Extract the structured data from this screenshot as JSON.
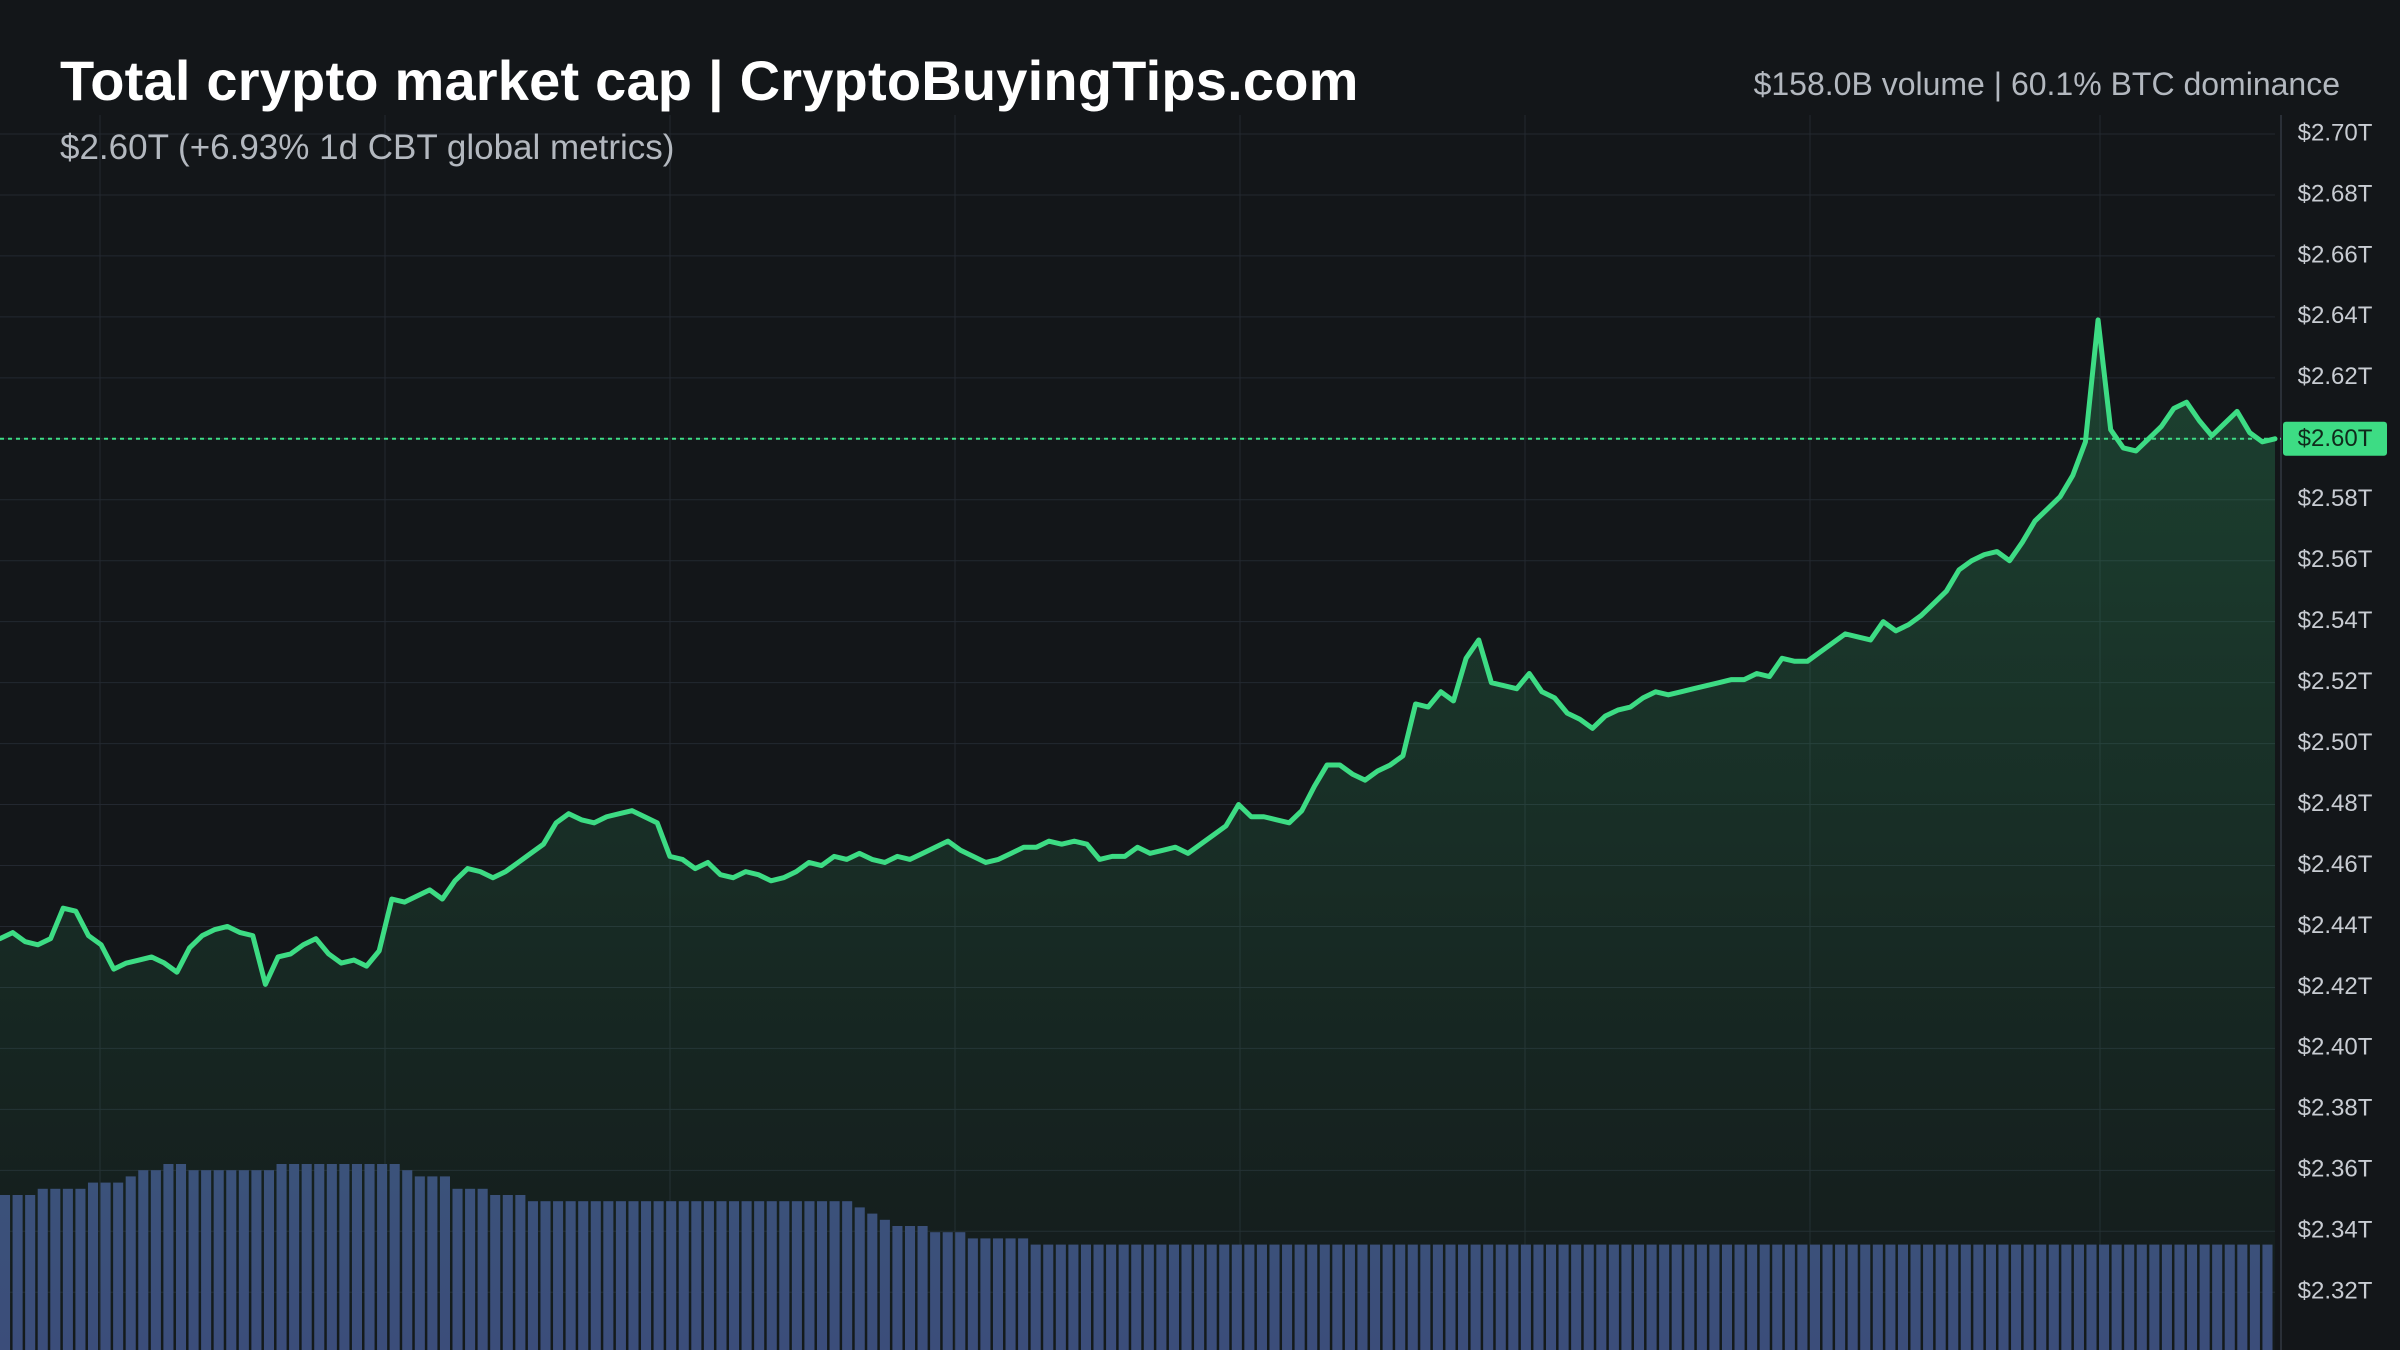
{
  "header": {
    "title": "Total crypto market cap | CryptoBuyingTips.com",
    "subtitle": "$2.60T (+6.93% 1d CBT global metrics)",
    "stats": "$158.0B volume | 60.1% BTC dominance"
  },
  "colors": {
    "background": "#131619",
    "line": "#3ddc84",
    "volume": "#3b4a7a",
    "grid": "#232830",
    "price_tag": "#3ddc84"
  },
  "chart_data": {
    "type": "area",
    "title": "Total crypto market cap | CryptoBuyingTips.com",
    "y_unit": "$T",
    "ylim": [
      2.31,
      2.71
    ],
    "y_ticks": [
      2.7,
      2.68,
      2.66,
      2.64,
      2.62,
      2.6,
      2.58,
      2.56,
      2.54,
      2.52,
      2.5,
      2.48,
      2.46,
      2.44,
      2.42,
      2.4,
      2.38,
      2.36,
      2.34,
      2.32
    ],
    "y_tick_labels": [
      "$2.70T",
      "$2.68T",
      "$2.66T",
      "$2.64T",
      "$2.62T",
      "$2.60T",
      "$2.58T",
      "$2.56T",
      "$2.54T",
      "$2.52T",
      "$2.50T",
      "$2.48T",
      "$2.46T",
      "$2.44T",
      "$2.42T",
      "$2.40T",
      "$2.38T",
      "$2.36T",
      "$2.34T",
      "$2.32T"
    ],
    "current_value": 2.6,
    "current_label": "$2.60T",
    "grid": true,
    "series": [
      {
        "values": [
          2.436,
          2.438,
          2.435,
          2.434,
          2.436,
          2.446,
          2.445,
          2.437,
          2.434,
          2.426,
          2.428,
          2.429,
          2.43,
          2.428,
          2.425,
          2.433,
          2.437,
          2.439,
          2.44,
          2.438,
          2.437,
          2.421,
          2.43,
          2.431,
          2.434,
          2.436,
          2.431,
          2.428,
          2.429,
          2.427,
          2.432,
          2.449,
          2.448,
          2.45,
          2.452,
          2.449,
          2.455,
          2.459,
          2.458,
          2.456,
          2.458,
          2.461,
          2.464,
          2.467,
          2.474,
          2.477,
          2.475,
          2.474,
          2.476,
          2.477,
          2.478,
          2.476,
          2.474,
          2.463,
          2.462,
          2.459,
          2.461,
          2.457,
          2.456,
          2.458,
          2.457,
          2.455,
          2.456,
          2.458,
          2.461,
          2.46,
          2.463,
          2.462,
          2.464,
          2.462,
          2.461,
          2.463,
          2.462,
          2.464,
          2.466,
          2.468,
          2.465,
          2.463,
          2.461,
          2.462,
          2.464,
          2.466,
          2.466,
          2.468,
          2.467,
          2.468,
          2.467,
          2.462,
          2.463,
          2.463,
          2.466,
          2.464,
          2.465,
          2.466,
          2.464,
          2.467,
          2.47,
          2.473,
          2.48,
          2.476,
          2.476,
          2.475,
          2.474,
          2.478,
          2.486,
          2.493,
          2.493,
          2.49,
          2.488,
          2.491,
          2.493,
          2.496,
          2.513,
          2.512,
          2.517,
          2.514,
          2.528,
          2.534,
          2.52,
          2.519,
          2.518,
          2.523,
          2.517,
          2.515,
          2.51,
          2.508,
          2.505,
          2.509,
          2.511,
          2.512,
          2.515,
          2.517,
          2.516,
          2.517,
          2.518,
          2.519,
          2.52,
          2.521,
          2.521,
          2.523,
          2.522,
          2.528,
          2.527,
          2.527,
          2.53,
          2.533,
          2.536,
          2.535,
          2.534,
          2.54,
          2.537,
          2.539,
          2.542,
          2.546,
          2.55,
          2.557,
          2.56,
          2.562,
          2.563,
          2.56,
          2.566,
          2.573,
          2.577,
          2.581,
          2.588,
          2.599,
          2.639,
          2.603,
          2.597,
          2.596,
          2.6,
          2.604,
          2.61,
          2.612,
          2.606,
          2.601,
          2.605,
          2.609,
          2.602,
          2.599,
          2.6
        ]
      }
    ],
    "volume_values": [
      25,
      25,
      25,
      26,
      26,
      26,
      26,
      27,
      27,
      27,
      28,
      29,
      29,
      30,
      30,
      29,
      29,
      29,
      29,
      29,
      29,
      29,
      30,
      30,
      30,
      30,
      30,
      30,
      30,
      30,
      30,
      30,
      29,
      28,
      28,
      28,
      26,
      26,
      26,
      25,
      25,
      25,
      24,
      24,
      24,
      24,
      24,
      24,
      24,
      24,
      24,
      24,
      24,
      24,
      24,
      24,
      24,
      24,
      24,
      24,
      24,
      24,
      24,
      24,
      24,
      24,
      24,
      24,
      23,
      22,
      21,
      20,
      20,
      20,
      19,
      19,
      19,
      18,
      18,
      18,
      18,
      18,
      17,
      17,
      17,
      17,
      17,
      17,
      17,
      17,
      17,
      17,
      17,
      17,
      17,
      17,
      17,
      17,
      17,
      17,
      17,
      17,
      17,
      17,
      17,
      17,
      17,
      17,
      17,
      17,
      17,
      17,
      17,
      17,
      17,
      17,
      17,
      17,
      17,
      17,
      17,
      17,
      17,
      17,
      17,
      17,
      17,
      17,
      17,
      17,
      17,
      17,
      17,
      17,
      17,
      17,
      17,
      17,
      17,
      17,
      17,
      17,
      17,
      17,
      17,
      17,
      17,
      17,
      17,
      17,
      17,
      17,
      17,
      17,
      17,
      17,
      17,
      17,
      17,
      17,
      17,
      17,
      17,
      17,
      17,
      17,
      17,
      17,
      17,
      17,
      17,
      17,
      17,
      17,
      17,
      17,
      17,
      17,
      17,
      17,
      17
    ]
  }
}
